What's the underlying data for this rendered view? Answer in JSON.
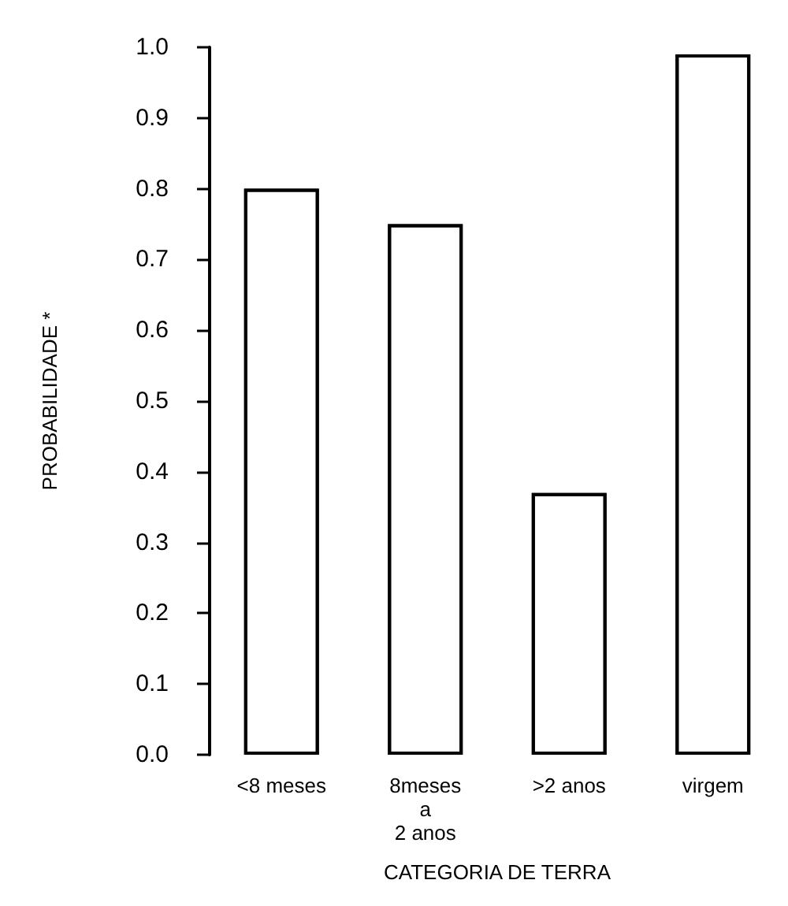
{
  "chart_data": {
    "type": "bar",
    "xlabel": "CATEGORIA DE TERRA",
    "ylabel": "PROBABILIDADE *",
    "categories": [
      "<8 meses",
      "8meses\na\n2 anos",
      ">2 anos",
      "virgem"
    ],
    "values": [
      0.8,
      0.75,
      0.37,
      0.99
    ],
    "color": "#ffffff",
    "ylim": [
      0,
      1
    ],
    "yticks": [
      {
        "value": 0,
        "label": "0.0"
      },
      {
        "value": 0.1,
        "label": "0.1"
      },
      {
        "value": 0.2,
        "label": "0.2"
      },
      {
        "value": 0.3,
        "label": "0.3"
      },
      {
        "value": 0.4,
        "label": "0.4"
      },
      {
        "value": 0.5,
        "label": "0.5"
      },
      {
        "value": 0.6,
        "label": "0.6"
      },
      {
        "value": 0.7,
        "label": "0.7"
      },
      {
        "value": 0.8,
        "label": "0.8"
      },
      {
        "value": 0.9,
        "label": "0.9"
      },
      {
        "value": 1,
        "label": "1.0"
      }
    ],
    "grid": false
  }
}
